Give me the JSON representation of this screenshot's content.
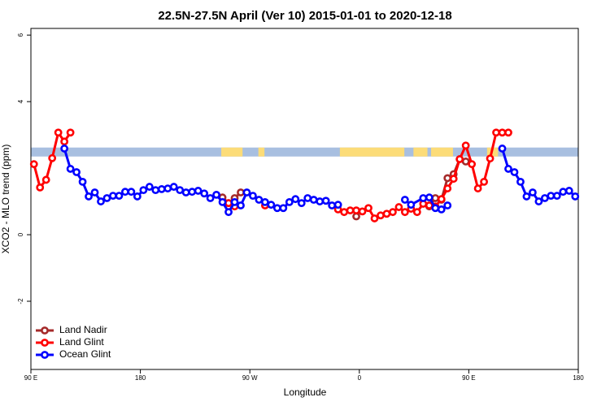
{
  "chart_data": {
    "type": "line",
    "title": "22.5N-27.5N April (Ver 10)   2015-01-01 to 2020-12-18",
    "x_label": "Longitude",
    "y_label": "XCO2 - MLO trend (ppm)",
    "xlim": [
      90,
      540
    ],
    "ylim": [
      -4.05,
      6.2
    ],
    "xticks": [
      {
        "value": 90,
        "label": "90 E"
      },
      180,
      {
        "value": 270,
        "label": "90 W"
      },
      {
        "value": 360,
        "label": "0"
      },
      {
        "value": 450,
        "label": "90 E"
      },
      {
        "value": 540,
        "label": "180"
      }
    ],
    "yticks": [
      -2,
      0,
      4,
      6
    ],
    "legend": "bottomleft",
    "mask_band": [
      2.35,
      2.62
    ],
    "ocean_color": "#a8bfe0",
    "land_color": "#fcdc78",
    "land_mask": [
      [
        246.5,
        264
      ],
      [
        277,
        282
      ],
      [
        344,
        397
      ],
      [
        404.5,
        416
      ],
      [
        419,
        437
      ],
      [
        465,
        474
      ]
    ],
    "series": [
      {
        "name": "Land Nadir",
        "color": "#a52a2a",
        "x": [
          247.5,
          252.5,
          257.5,
          262.5,
          300,
          357.5,
          400,
          417.5,
          422.5,
          427.5,
          432.5,
          437.5,
          442.5,
          447.5
        ],
        "values": [
          1.12,
          0.95,
          1.1,
          1.27,
          null,
          0.55,
          null,
          0.85,
          1.1,
          1.05,
          1.7,
          1.82,
          2.27,
          2.2
        ]
      },
      {
        "name": "Land Glint",
        "color": "#ff0000",
        "x": [
          92.5,
          97.5,
          102.5,
          107.5,
          112.5,
          117.5,
          122.5,
          200,
          252.5,
          257.5,
          270,
          282.5,
          300,
          342.5,
          347.5,
          352.5,
          357.5,
          362.5,
          367.5,
          372.5,
          377.5,
          382.5,
          387.5,
          392.5,
          397.5,
          402.5,
          407.5,
          412.5,
          417.5,
          422.5,
          427.5,
          432.5,
          437.5,
          442.5,
          447.5,
          452.5,
          457.5,
          462.5,
          467.5,
          472.5,
          477.5,
          482.5
        ],
        "values": [
          2.12,
          1.42,
          1.65,
          2.3,
          3.07,
          2.8,
          3.07,
          null,
          0.95,
          0.85,
          null,
          0.88,
          null,
          0.76,
          0.68,
          0.73,
          0.73,
          0.7,
          0.8,
          0.49,
          0.58,
          0.63,
          0.68,
          0.83,
          0.68,
          0.78,
          0.68,
          0.93,
          0.88,
          0.85,
          1.07,
          1.39,
          1.68,
          2.27,
          2.68,
          2.12,
          1.39,
          1.59,
          2.29,
          3.07,
          3.07,
          3.07
        ]
      },
      {
        "name": "Ocean Glint",
        "color": "#0000ff",
        "x": [
          117.5,
          122.5,
          127.5,
          132.5,
          137.5,
          142.5,
          147.5,
          152.5,
          157.5,
          162.5,
          167.5,
          172.5,
          177.5,
          182.5,
          187.5,
          192.5,
          197.5,
          202.5,
          207.5,
          212.5,
          217.5,
          222.5,
          227.5,
          232.5,
          237.5,
          242.5,
          247.5,
          252.5,
          257.5,
          262.5,
          267.5,
          272.5,
          277.5,
          282.5,
          287.5,
          292.5,
          297.5,
          302.5,
          307.5,
          312.5,
          317.5,
          322.5,
          327.5,
          332.5,
          337.5,
          342.5,
          370,
          397.5,
          402.5,
          412.5,
          417.5,
          422.5,
          427.5,
          432.5,
          450,
          477.5,
          482.5,
          487.5,
          492.5,
          497.5,
          502.5,
          507.5,
          512.5,
          517.5,
          522.5,
          527.5,
          532.5,
          537.5
        ],
        "values": [
          2.59,
          1.98,
          1.88,
          1.59,
          1.15,
          1.27,
          1.0,
          1.1,
          1.17,
          1.17,
          1.29,
          1.29,
          1.15,
          1.34,
          1.44,
          1.34,
          1.37,
          1.39,
          1.44,
          1.34,
          1.27,
          1.29,
          1.32,
          1.24,
          1.1,
          1.2,
          0.98,
          0.68,
          0.98,
          0.88,
          1.27,
          1.17,
          1.05,
          0.98,
          0.9,
          0.8,
          0.8,
          0.98,
          1.07,
          0.95,
          1.1,
          1.05,
          1.0,
          1.02,
          0.88,
          0.9,
          null,
          1.05,
          0.9,
          1.1,
          1.12,
          0.8,
          0.76,
          0.88,
          null,
          2.59,
          1.98,
          1.88,
          1.59,
          1.15,
          1.27,
          1.0,
          1.1,
          1.17,
          1.17,
          1.29,
          1.32,
          1.15
        ]
      }
    ]
  }
}
